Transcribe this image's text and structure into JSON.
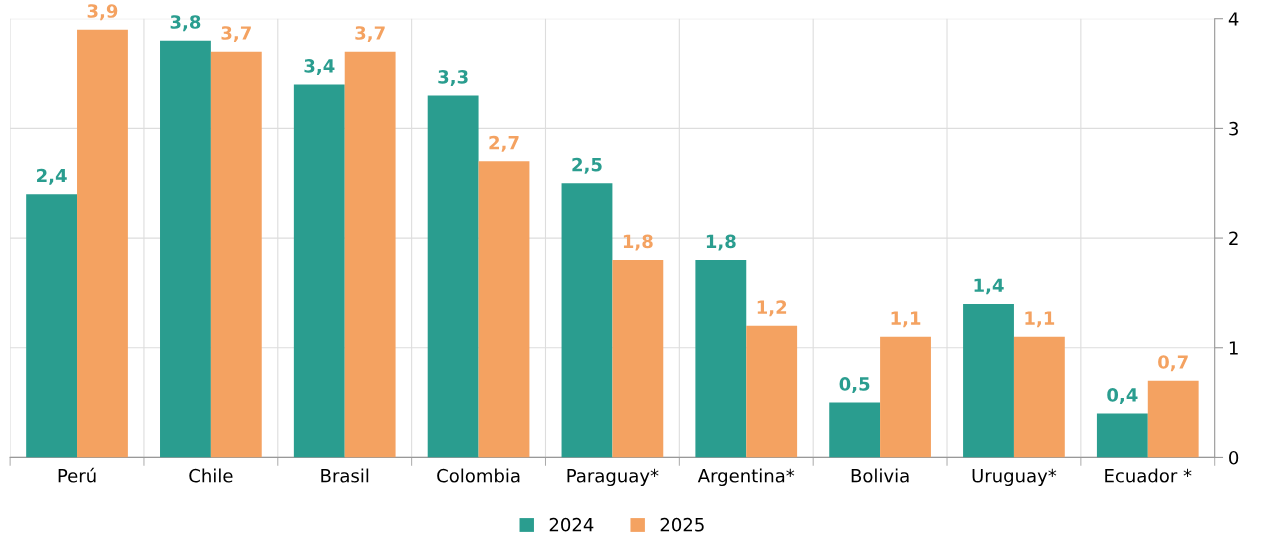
{
  "chart_data": {
    "type": "bar",
    "categories": [
      "Perú",
      "Chile",
      "Brasil",
      "Colombia",
      "Paraguay*",
      "Argentina*",
      "Bolivia",
      "Uruguay*",
      "Ecuador *"
    ],
    "series": [
      {
        "name": "2024",
        "color": "#2a9d8f",
        "values": [
          2.4,
          3.8,
          3.4,
          3.3,
          2.5,
          1.8,
          0.5,
          1.4,
          0.4
        ],
        "value_labels": [
          "2,4",
          "3,8",
          "3,4",
          "3,3",
          "2,5",
          "1,8",
          "0,5",
          "1,4",
          "0,4"
        ]
      },
      {
        "name": "2025",
        "color": "#f4a261",
        "values": [
          3.9,
          3.7,
          3.7,
          2.7,
          1.8,
          1.2,
          1.1,
          1.1,
          0.7
        ],
        "value_labels": [
          "3,9",
          "3,7",
          "3,7",
          "2,7",
          "1,8",
          "1,2",
          "1,1",
          "1,1",
          "0,7"
        ]
      }
    ],
    "ylim": [
      0,
      4
    ],
    "yticks": [
      0,
      1,
      2,
      3,
      4
    ],
    "grid": true,
    "legend": "bottom"
  }
}
